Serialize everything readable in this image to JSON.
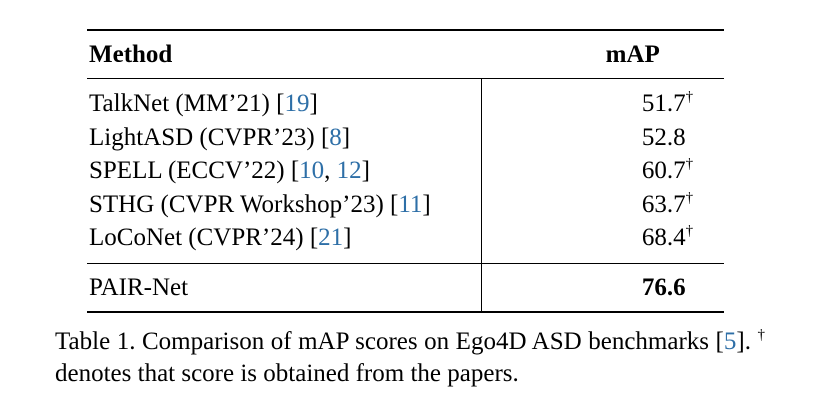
{
  "table": {
    "headers": {
      "method": "Method",
      "score": "mAP"
    },
    "rows": [
      {
        "name": "TalkNet (MM’21) ",
        "cite_open": "[",
        "cite": "19",
        "cite_sep": "",
        "cite2": "",
        "cite_close": "]",
        "score": "51.7",
        "mark": "†"
      },
      {
        "name": "LightASD (CVPR’23) ",
        "cite_open": "[",
        "cite": "8",
        "cite_sep": "",
        "cite2": "",
        "cite_close": "]",
        "score": "52.8",
        "mark": ""
      },
      {
        "name": "SPELL (ECCV’22) ",
        "cite_open": "[",
        "cite": "10",
        "cite_sep": ", ",
        "cite2": "12",
        "cite_close": "]",
        "score": "60.7",
        "mark": "†"
      },
      {
        "name": "STHG (CVPR Workshop’23) ",
        "cite_open": "[",
        "cite": "11",
        "cite_sep": "",
        "cite2": "",
        "cite_close": "]",
        "score": "63.7",
        "mark": "†"
      },
      {
        "name": "LoCoNet (CVPR’24) ",
        "cite_open": "[",
        "cite": "21",
        "cite_sep": "",
        "cite2": "",
        "cite_close": "]",
        "score": "68.4",
        "mark": "†"
      }
    ],
    "final_row": {
      "name": "PAIR-Net",
      "score": "76.6"
    }
  },
  "caption": {
    "part1": "Table 1.  Comparison of mAP scores on Ego4D ASD benchmarks [",
    "cite": "5",
    "part2": "]. ",
    "dagger": "†",
    "part3": " denotes that score is obtained from the papers."
  },
  "colors": {
    "citation": "#2e6fa7",
    "text": "#000000"
  }
}
